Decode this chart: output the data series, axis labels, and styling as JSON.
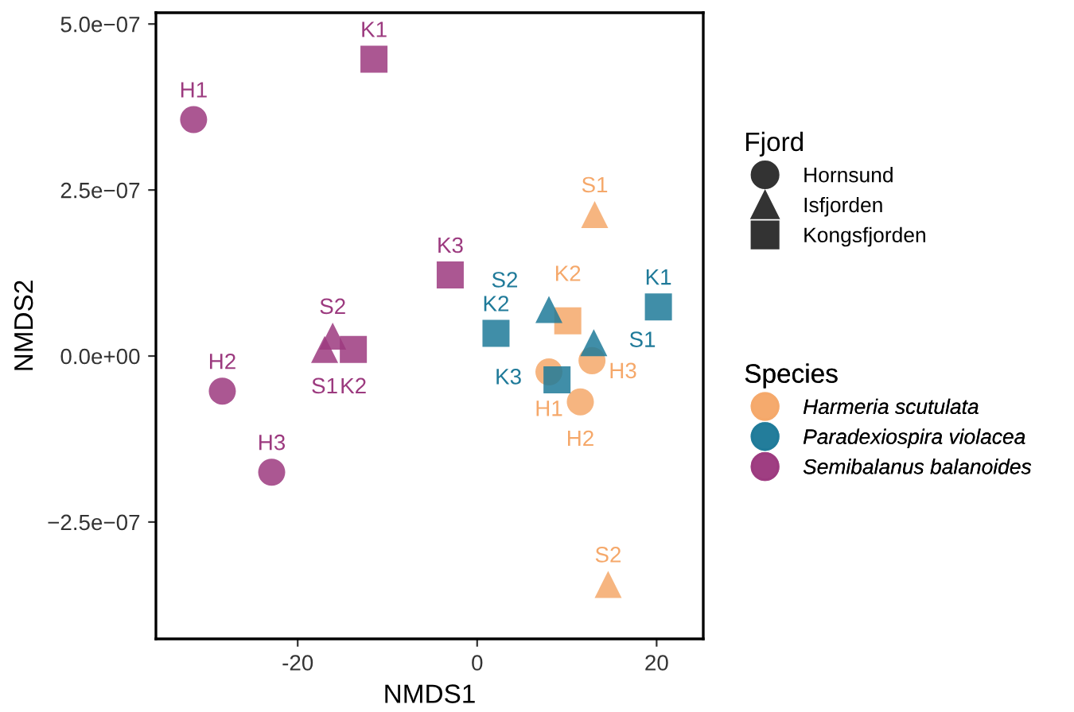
{
  "chart_data": {
    "type": "scatter",
    "xlabel": "NMDS1",
    "ylabel": "NMDS2",
    "xlim": [
      -35.8,
      25.2
    ],
    "ylim": [
      -4.26e-07,
      5.17e-07
    ],
    "xticks": [
      -20,
      0,
      20
    ],
    "yticks": [
      {
        "value": -2.5e-07,
        "label": "−2.5e−07"
      },
      {
        "value": 0,
        "label": "0.0e+00"
      },
      {
        "value": 2.5e-07,
        "label": "2.5e−07"
      },
      {
        "value": 5e-07,
        "label": "5.0e−07"
      }
    ],
    "grid": false,
    "legend": "right",
    "legend_title": [
      "Fjord",
      "Species"
    ],
    "series": [
      {
        "color": "#f5a86a",
        "marker": "circle",
        "x": [
          8.0,
          12.8,
          11.5
        ],
        "values": [
          -2.4e-08,
          -7e-09,
          -6.9e-08
        ],
        "value_labels": [
          "H1",
          "H3",
          "H2"
        ]
      },
      {
        "color": "#f5a86a",
        "marker": "triangle",
        "x": [
          13.1,
          14.6
        ],
        "values": [
          2.13e-07,
          -3.44e-07
        ],
        "value_labels": [
          "S1",
          "S2"
        ]
      },
      {
        "color": "#f5a86a",
        "marker": "square",
        "x": [
          10.1
        ],
        "values": [
          5.3e-08
        ],
        "value_labels": [
          "K2"
        ]
      },
      {
        "color": "#1f7a99",
        "marker": "triangle",
        "x": [
          8.0,
          13.0
        ],
        "values": [
          7e-08,
          2e-08
        ],
        "value_labels": [
          "S2",
          "S1"
        ]
      },
      {
        "color": "#1f7a99",
        "marker": "square",
        "x": [
          2.1,
          20.2,
          8.9
        ],
        "values": [
          3.4e-08,
          7.4e-08,
          -3.6e-08
        ],
        "value_labels": [
          "K2",
          "K1",
          "K3"
        ]
      },
      {
        "color": "#9c3a7f",
        "marker": "circle",
        "x": [
          -31.6,
          -28.4,
          -22.9
        ],
        "values": [
          3.56e-07,
          -5.3e-08,
          -1.75e-07
        ],
        "value_labels": [
          "H1",
          "H2",
          "H3"
        ]
      },
      {
        "color": "#9c3a7f",
        "marker": "triangle",
        "x": [
          -17.0,
          -16.1
        ],
        "values": [
          1e-08,
          3e-08
        ],
        "value_labels": [
          "S1",
          "S2"
        ]
      },
      {
        "color": "#9c3a7f",
        "marker": "square",
        "x": [
          -11.5,
          -3.0,
          -13.8
        ],
        "values": [
          4.47e-07,
          1.22e-07,
          1e-08
        ],
        "value_labels": [
          "K1",
          "K3",
          "K2"
        ]
      },
      {
        "name": "Hornsund",
        "color": "#333333",
        "marker": "circle"
      },
      {
        "name": "Isfjorden",
        "color": "#333333",
        "marker": "triangle"
      },
      {
        "name": "Kongsfjorden",
        "color": "#333333",
        "marker": "square"
      },
      {
        "name": "Harmeria scutulata",
        "color": "#f5a86a",
        "marker": "circle"
      },
      {
        "name": "Paradexiospira violacea",
        "color": "#1f7a99",
        "marker": "circle"
      },
      {
        "name": "Semibalanus balanoides",
        "color": "#9c3a7f",
        "marker": "circle"
      }
    ]
  }
}
